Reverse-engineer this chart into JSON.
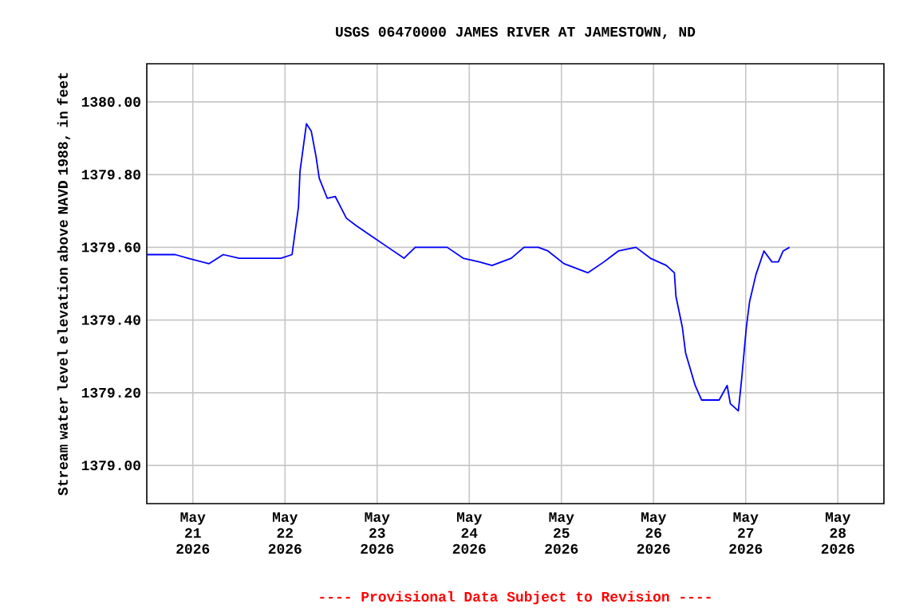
{
  "chart_data": {
    "type": "line",
    "title": "USGS 06470000 JAMES RIVER AT JAMESTOWN, ND",
    "ylabel": "Stream water level elevation above NAVD 1988, in feet",
    "annotations": [
      "---- Provisional Data Subject to Revision ----"
    ],
    "x": [
      "2026-05-20T12:00",
      "2026-05-20T19:25",
      "2026-05-20T22:45",
      "2026-05-21T04:10",
      "2026-05-21T07:55",
      "2026-05-21T12:05",
      "2026-05-21T18:20",
      "2026-05-21T22:55",
      "2026-05-22T01:50",
      "2026-05-22T03:30",
      "2026-05-22T03:55",
      "2026-05-22T05:35",
      "2026-05-22T06:50",
      "2026-05-22T08:05",
      "2026-05-22T08:55",
      "2026-05-22T11:00",
      "2026-05-22T13:05",
      "2026-05-22T16:00",
      "2026-05-22T18:30",
      "2026-05-22T22:40",
      "2026-05-23T02:50",
      "2026-05-23T07:00",
      "2026-05-23T09:55",
      "2026-05-23T14:05",
      "2026-05-23T18:15",
      "2026-05-23T22:25",
      "2026-05-24T02:35",
      "2026-05-24T05:55",
      "2026-05-24T10:55",
      "2026-05-24T14:15",
      "2026-05-24T18:00",
      "2026-05-24T20:30",
      "2026-05-25T00:40",
      "2026-05-25T06:55",
      "2026-05-25T11:05",
      "2026-05-25T14:50",
      "2026-05-25T19:25",
      "2026-05-25T23:10",
      "2026-05-26T03:20",
      "2026-05-26T05:25",
      "2026-05-26T05:50",
      "2026-05-26T07:30",
      "2026-05-26T08:20",
      "2026-05-26T09:35",
      "2026-05-26T10:50",
      "2026-05-26T12:30",
      "2026-05-26T14:10",
      "2026-05-26T17:05",
      "2026-05-26T19:10",
      "2026-05-26T20:00",
      "2026-05-26T22:05",
      "2026-05-26T22:55",
      "2026-05-27T00:10",
      "2026-05-27T01:00",
      "2026-05-27T02:40",
      "2026-05-27T04:45",
      "2026-05-27T06:50",
      "2026-05-27T08:30",
      "2026-05-27T09:45",
      "2026-05-27T11:25"
    ],
    "series": [
      {
        "color": "#0000ff",
        "values": [
          1379.58,
          1379.58,
          1379.57,
          1379.555,
          1379.58,
          1379.57,
          1379.57,
          1379.57,
          1379.58,
          1379.71,
          1379.81,
          1379.94,
          1379.92,
          1379.85,
          1379.79,
          1379.735,
          1379.74,
          1379.68,
          1379.66,
          1379.63,
          1379.6,
          1379.57,
          1379.6,
          1379.6,
          1379.6,
          1379.57,
          1379.56,
          1379.55,
          1379.57,
          1379.6,
          1379.6,
          1379.59,
          1379.555,
          1379.53,
          1379.56,
          1379.59,
          1379.6,
          1379.57,
          1379.55,
          1379.53,
          1379.465,
          1379.38,
          1379.31,
          1379.265,
          1379.22,
          1379.18,
          1379.18,
          1379.18,
          1379.22,
          1379.17,
          1379.15,
          1379.235,
          1379.38,
          1379.45,
          1379.525,
          1379.59,
          1379.56,
          1379.56,
          1379.59,
          1379.6
        ]
      }
    ],
    "xlim": [
      "2026-05-20T12:00",
      "2026-05-28T12:00"
    ],
    "xticks": [
      {
        "value": "2026-05-21",
        "label": "May 21 2026"
      },
      {
        "value": "2026-05-22",
        "label": "May 22 2026"
      },
      {
        "value": "2026-05-23",
        "label": "May 23 2026"
      },
      {
        "value": "2026-05-24",
        "label": "May 24 2026"
      },
      {
        "value": "2026-05-25",
        "label": "May 25 2026"
      },
      {
        "value": "2026-05-26",
        "label": "May 26 2026"
      },
      {
        "value": "2026-05-27",
        "label": "May 27 2026"
      },
      {
        "value": "2026-05-28",
        "label": "May 28 2026"
      }
    ],
    "ylim": [
      1378.895,
      1380.105
    ],
    "yticks": [
      {
        "value": 1379.0,
        "label": "1379.00"
      },
      {
        "value": 1379.2,
        "label": "1379.20"
      },
      {
        "value": 1379.4,
        "label": "1379.40"
      },
      {
        "value": 1379.6,
        "label": "1379.60"
      },
      {
        "value": 1379.8,
        "label": "1379.80"
      },
      {
        "value": 1380.0,
        "label": "1380.00"
      }
    ],
    "grid": true,
    "marker": "none",
    "line_style": "solid"
  }
}
